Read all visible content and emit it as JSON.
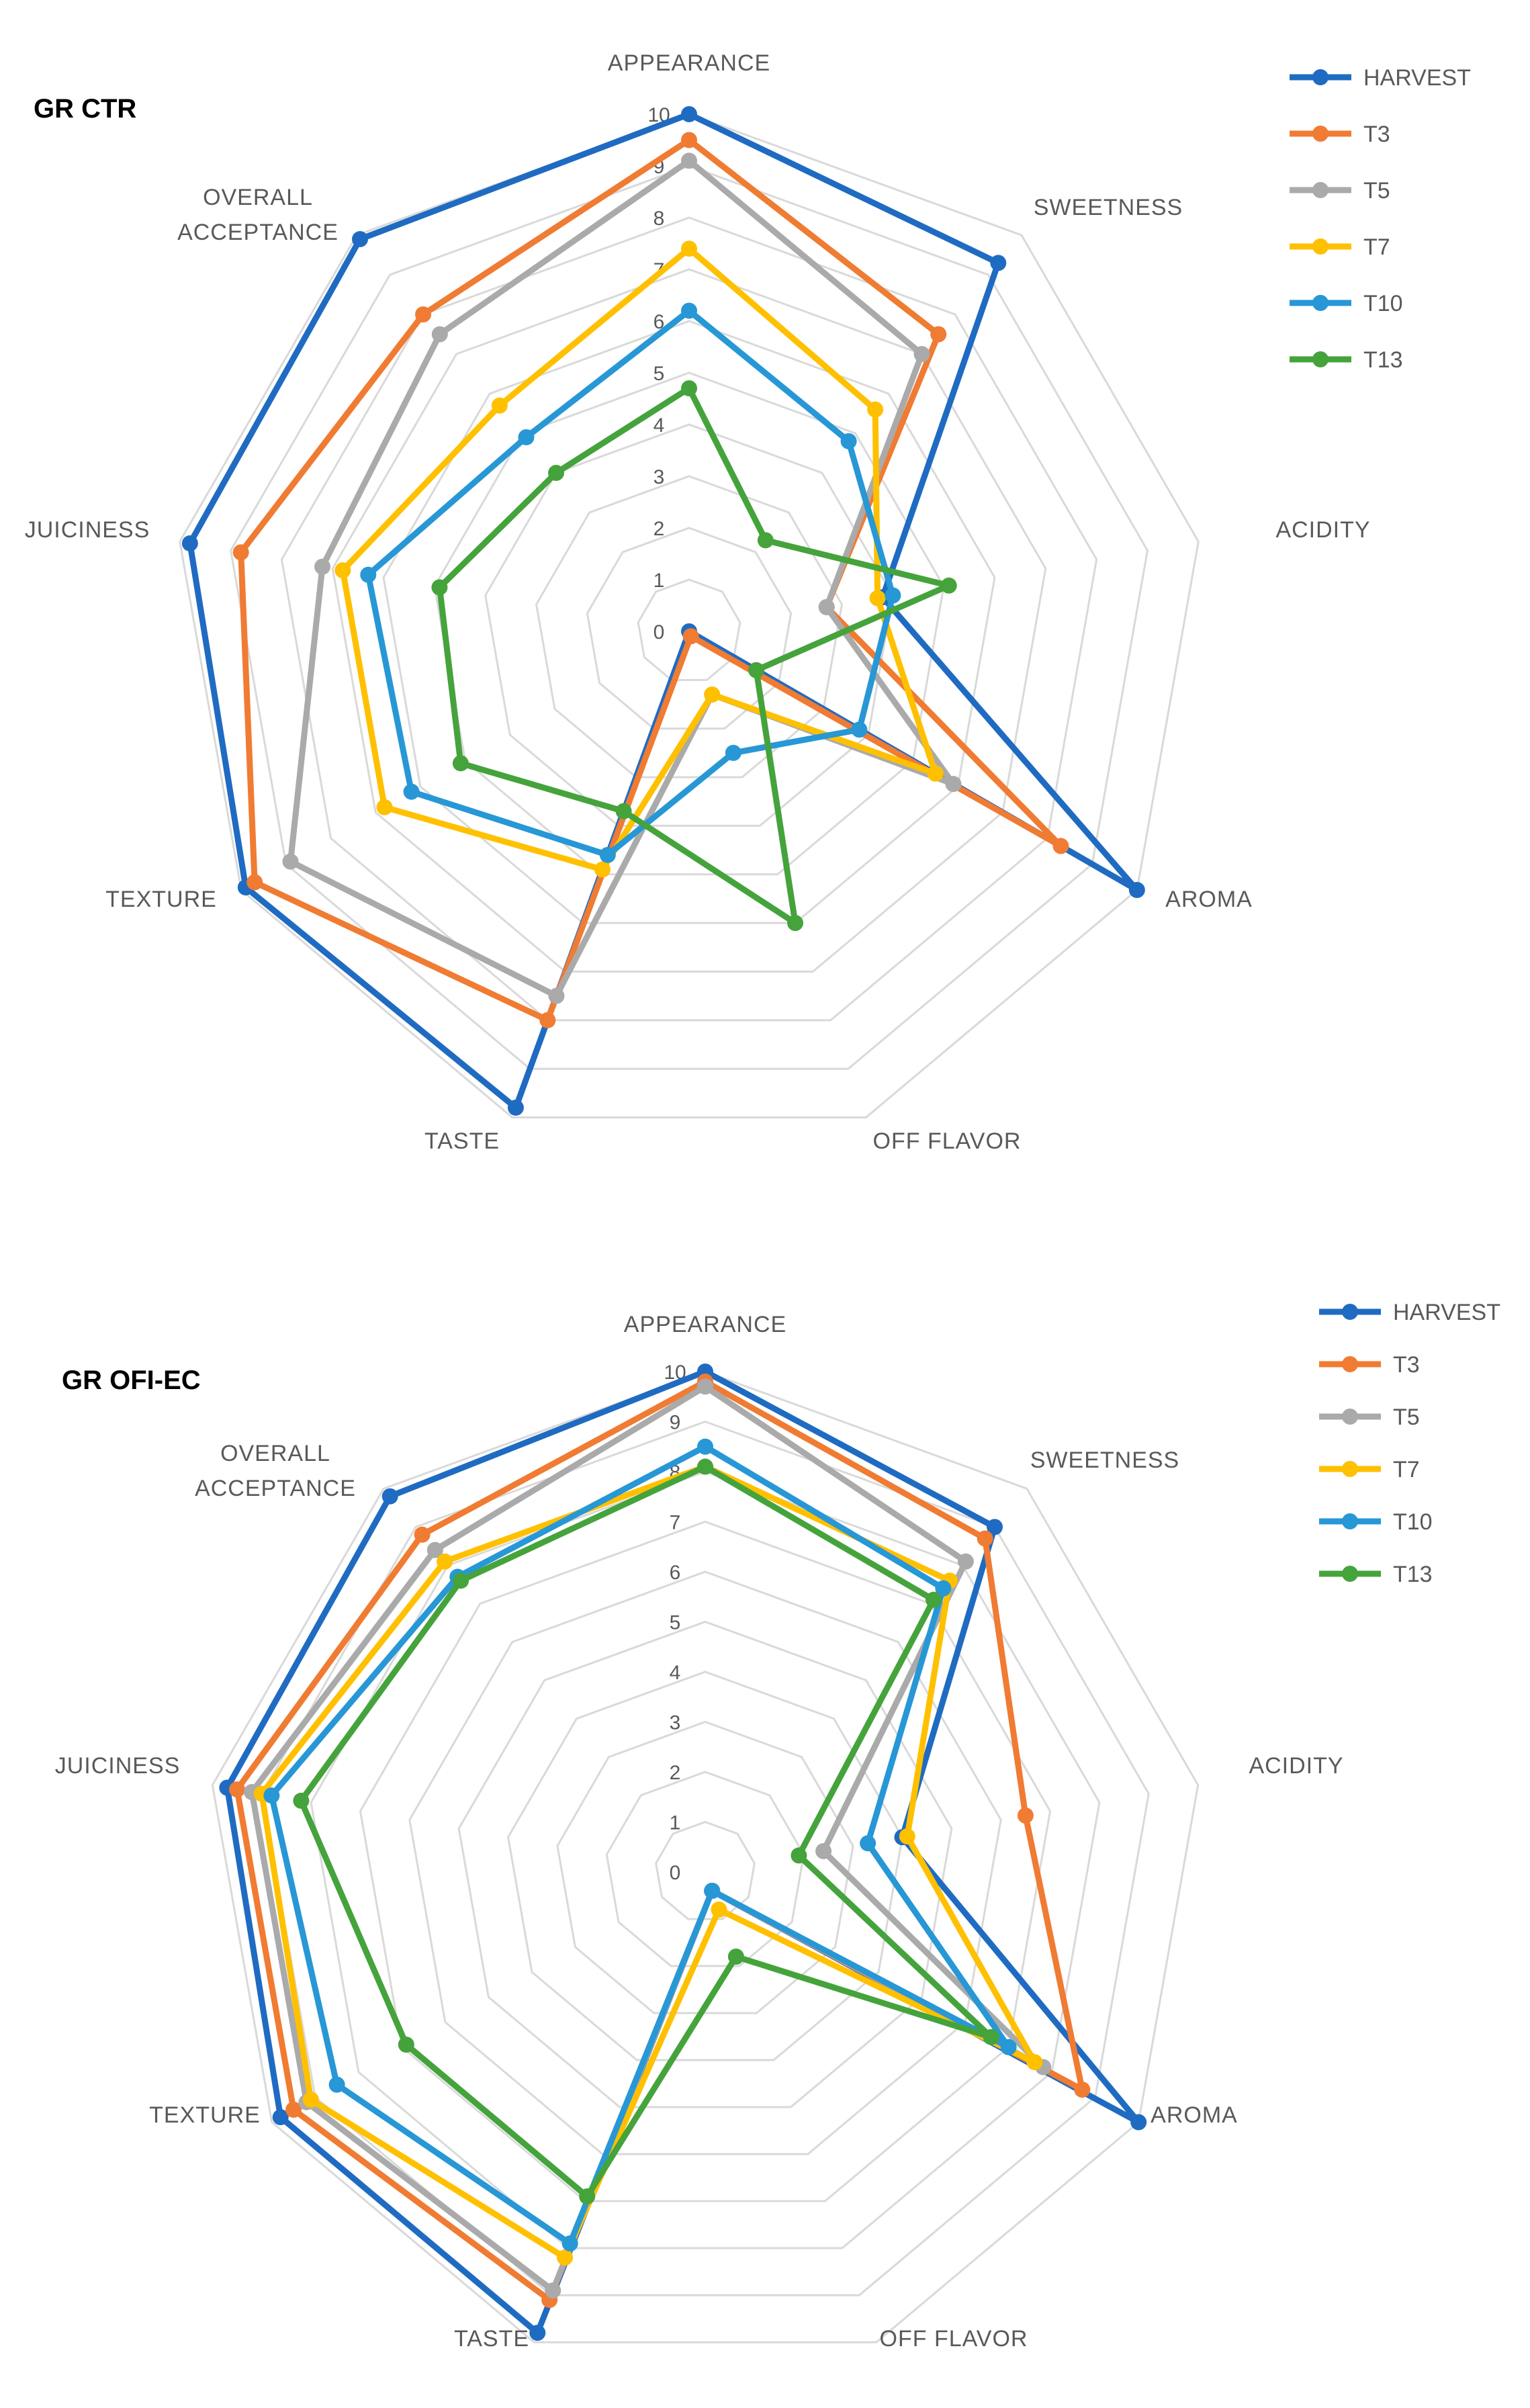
{
  "chart_data": [
    {
      "type": "radar",
      "title": "GR CTR",
      "axes": [
        "APPEARANCE",
        "SWEETNESS",
        "ACIDITY",
        "AROMA",
        "OFF FLAVOR",
        "TASTE",
        "TEXTURE",
        "JUICINESS",
        "OVERALL ACCEPTANCE"
      ],
      "ticks": [
        "0",
        "1",
        "2",
        "3",
        "4",
        "5",
        "6",
        "7",
        "8",
        "9",
        "10"
      ],
      "rmin": 0,
      "rmax": 10,
      "legend_position": "top-right",
      "series": [
        {
          "name": "HARVEST",
          "color": "#1F6BC2",
          "values": [
            10.0,
            9.3,
            3.8,
            10.0,
            0.0,
            9.8,
            9.9,
            9.8,
            9.9
          ]
        },
        {
          "name": "T3",
          "color": "#F07B32",
          "values": [
            9.5,
            7.5,
            2.7,
            8.3,
            0.1,
            8.0,
            9.7,
            8.8,
            8.0
          ]
        },
        {
          "name": "T5",
          "color": "#AAAAAA",
          "values": [
            9.1,
            7.0,
            2.7,
            5.9,
            1.3,
            7.5,
            8.9,
            7.2,
            7.5
          ]
        },
        {
          "name": "T7",
          "color": "#FFC000",
          "values": [
            7.4,
            5.6,
            3.7,
            5.5,
            1.3,
            4.9,
            6.8,
            6.8,
            5.7
          ]
        },
        {
          "name": "T10",
          "color": "#2797D6",
          "values": [
            6.2,
            4.8,
            4.0,
            3.8,
            2.5,
            4.6,
            6.2,
            6.3,
            4.9
          ]
        },
        {
          "name": "T13",
          "color": "#45A33C",
          "values": [
            4.7,
            2.3,
            5.1,
            1.5,
            6.0,
            3.7,
            5.1,
            4.9,
            4.0
          ]
        }
      ]
    },
    {
      "type": "radar",
      "title": "GR OFI-EC",
      "axes": [
        "APPEARANCE",
        "SWEETNESS",
        "ACIDITY",
        "AROMA",
        "OFF FLAVOR",
        "TASTE",
        "TEXTURE",
        "JUICINESS",
        "OVERALL ACCEPTANCE"
      ],
      "ticks": [
        "0",
        "1",
        "2",
        "3",
        "4",
        "5",
        "6",
        "7",
        "8",
        "9",
        "10"
      ],
      "rmin": 0,
      "rmax": 10,
      "legend_position": "top-right",
      "series": [
        {
          "name": "HARVEST",
          "color": "#1F6BC2",
          "values": [
            10.0,
            9.0,
            4.0,
            10.0,
            0.4,
            9.8,
            9.8,
            9.7,
            9.8
          ]
        },
        {
          "name": "T3",
          "color": "#F07B32",
          "values": [
            9.8,
            8.7,
            6.5,
            8.7,
            0.4,
            9.1,
            9.5,
            9.5,
            8.8
          ]
        },
        {
          "name": "T5",
          "color": "#AAAAAA",
          "values": [
            9.7,
            8.1,
            2.4,
            7.8,
            0.4,
            8.9,
            9.2,
            9.2,
            8.4
          ]
        },
        {
          "name": "T7",
          "color": "#FFC000",
          "values": [
            8.1,
            7.6,
            4.1,
            7.6,
            0.8,
            8.2,
            9.1,
            9.0,
            8.1
          ]
        },
        {
          "name": "T10",
          "color": "#2797D6",
          "values": [
            8.5,
            7.4,
            3.3,
            7.0,
            0.4,
            7.9,
            8.5,
            8.8,
            7.7
          ]
        },
        {
          "name": "T13",
          "color": "#45A33C",
          "values": [
            8.1,
            7.1,
            1.9,
            6.6,
            1.8,
            6.9,
            6.9,
            8.2,
            7.6
          ]
        }
      ]
    }
  ]
}
